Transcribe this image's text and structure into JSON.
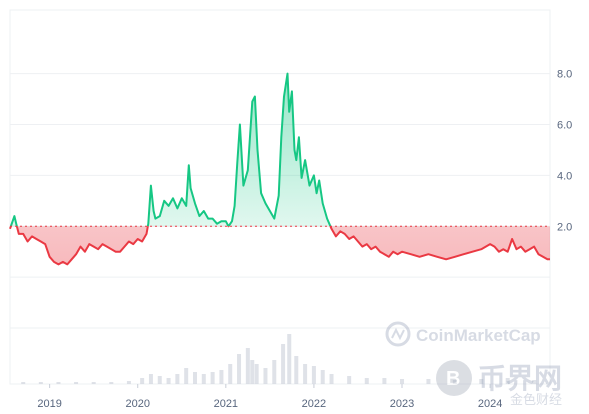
{
  "chart_data": {
    "type": "line",
    "title": "",
    "xlabel": "",
    "ylabel": "",
    "baseline": 2.0,
    "x_ticks": [
      "2019",
      "2020",
      "2021",
      "2022",
      "2023",
      "2024"
    ],
    "y_ticks": [
      "8.0",
      "6.0",
      "4.0",
      "2.0"
    ],
    "ylim": [
      -4.2,
      10.5
    ],
    "xlim": [
      2018.55,
      2024.68
    ],
    "grid": true,
    "colors": {
      "above": "#16c784",
      "below": "#ea3943",
      "baseline": "#ea3943"
    },
    "series": [
      {
        "x": [
          2018.55,
          2018.6,
          2018.62,
          2018.65,
          2018.7,
          2018.75,
          2018.8,
          2018.85,
          2018.9,
          2018.95,
          2019.0,
          2019.05,
          2019.1,
          2019.15,
          2019.2,
          2019.25,
          2019.3,
          2019.35,
          2019.4,
          2019.45,
          2019.5,
          2019.55,
          2019.6,
          2019.65,
          2019.7,
          2019.75,
          2019.8,
          2019.85,
          2019.9,
          2019.95,
          2020.0,
          2020.05,
          2020.1,
          2020.12,
          2020.15,
          2020.18,
          2020.2,
          2020.25,
          2020.3,
          2020.35,
          2020.4,
          2020.45,
          2020.5,
          2020.55,
          2020.58,
          2020.6,
          2020.65,
          2020.7,
          2020.75,
          2020.8,
          2020.85,
          2020.9,
          2020.95,
          2021.0,
          2021.03,
          2021.07,
          2021.1,
          2021.13,
          2021.16,
          2021.2,
          2021.25,
          2021.3,
          2021.33,
          2021.36,
          2021.4,
          2021.45,
          2021.5,
          2021.55,
          2021.6,
          2021.63,
          2021.66,
          2021.7,
          2021.72,
          2021.75,
          2021.78,
          2021.8,
          2021.83,
          2021.86,
          2021.9,
          2021.95,
          2022.0,
          2022.03,
          2022.06,
          2022.1,
          2022.15,
          2022.2,
          2022.25,
          2022.3,
          2022.35,
          2022.4,
          2022.45,
          2022.5,
          2022.55,
          2022.6,
          2022.65,
          2022.7,
          2022.75,
          2022.8,
          2022.85,
          2022.9,
          2022.95,
          2023.0,
          2023.1,
          2023.2,
          2023.3,
          2023.4,
          2023.5,
          2023.6,
          2023.7,
          2023.8,
          2023.9,
          2024.0,
          2024.05,
          2024.1,
          2024.15,
          2024.2,
          2024.25,
          2024.3,
          2024.35,
          2024.4,
          2024.45,
          2024.5,
          2024.55,
          2024.6,
          2024.65,
          2024.68
        ],
        "y": [
          1.9,
          2.4,
          2.1,
          1.7,
          1.7,
          1.4,
          1.6,
          1.5,
          1.4,
          1.3,
          0.8,
          0.6,
          0.5,
          0.6,
          0.5,
          0.7,
          0.9,
          1.2,
          1.0,
          1.3,
          1.2,
          1.1,
          1.3,
          1.2,
          1.1,
          1.0,
          1.0,
          1.2,
          1.4,
          1.3,
          1.5,
          1.4,
          1.7,
          2.1,
          3.6,
          2.6,
          2.3,
          2.4,
          3.0,
          2.8,
          3.1,
          2.7,
          3.1,
          2.8,
          4.4,
          3.5,
          2.9,
          2.4,
          2.6,
          2.3,
          2.3,
          2.1,
          2.2,
          2.2,
          2.0,
          2.2,
          2.8,
          4.5,
          6.0,
          3.6,
          4.2,
          6.9,
          7.1,
          5.0,
          3.3,
          2.9,
          2.6,
          2.3,
          3.2,
          5.5,
          7.1,
          8.0,
          6.5,
          7.3,
          5.0,
          4.6,
          5.5,
          3.9,
          4.6,
          3.6,
          4.0,
          3.3,
          3.8,
          2.9,
          2.3,
          1.9,
          1.6,
          1.8,
          1.7,
          1.5,
          1.6,
          1.4,
          1.2,
          1.3,
          1.1,
          1.2,
          1.0,
          0.9,
          0.8,
          1.0,
          0.9,
          1.0,
          0.9,
          0.8,
          0.9,
          0.8,
          0.7,
          0.8,
          0.9,
          1.0,
          1.1,
          1.3,
          1.2,
          1.0,
          1.1,
          1.0,
          1.5,
          1.1,
          1.2,
          1.0,
          1.1,
          1.2,
          0.9,
          0.8,
          0.7,
          0.7
        ]
      }
    ],
    "volume": {
      "x": [
        2018.7,
        2018.9,
        2019.1,
        2019.3,
        2019.5,
        2019.7,
        2019.9,
        2020.05,
        2020.15,
        2020.25,
        2020.35,
        2020.45,
        2020.55,
        2020.65,
        2020.75,
        2020.85,
        2020.95,
        2021.05,
        2021.15,
        2021.25,
        2021.3,
        2021.35,
        2021.45,
        2021.55,
        2021.65,
        2021.72,
        2021.8,
        2021.9,
        2022.0,
        2022.1,
        2022.2,
        2022.4,
        2022.6,
        2022.8,
        2023.0,
        2023.3,
        2023.6,
        2023.9,
        2024.2,
        2024.5
      ],
      "values": [
        0.1,
        0.1,
        0.1,
        0.1,
        0.1,
        0.1,
        0.15,
        0.3,
        0.5,
        0.4,
        0.3,
        0.5,
        0.8,
        0.6,
        0.5,
        0.6,
        0.7,
        1.0,
        1.5,
        1.8,
        1.2,
        1.0,
        0.8,
        1.2,
        2.0,
        2.5,
        1.4,
        1.0,
        0.9,
        0.7,
        0.5,
        0.4,
        0.3,
        0.3,
        0.25,
        0.25,
        0.2,
        0.25,
        0.3,
        0.2
      ]
    }
  },
  "watermarks": {
    "coinmarketcap_logo_text": "CoinMarketCap",
    "bijie_logo_text": "币界网",
    "bijie_logo_subtext": "金色财经"
  }
}
